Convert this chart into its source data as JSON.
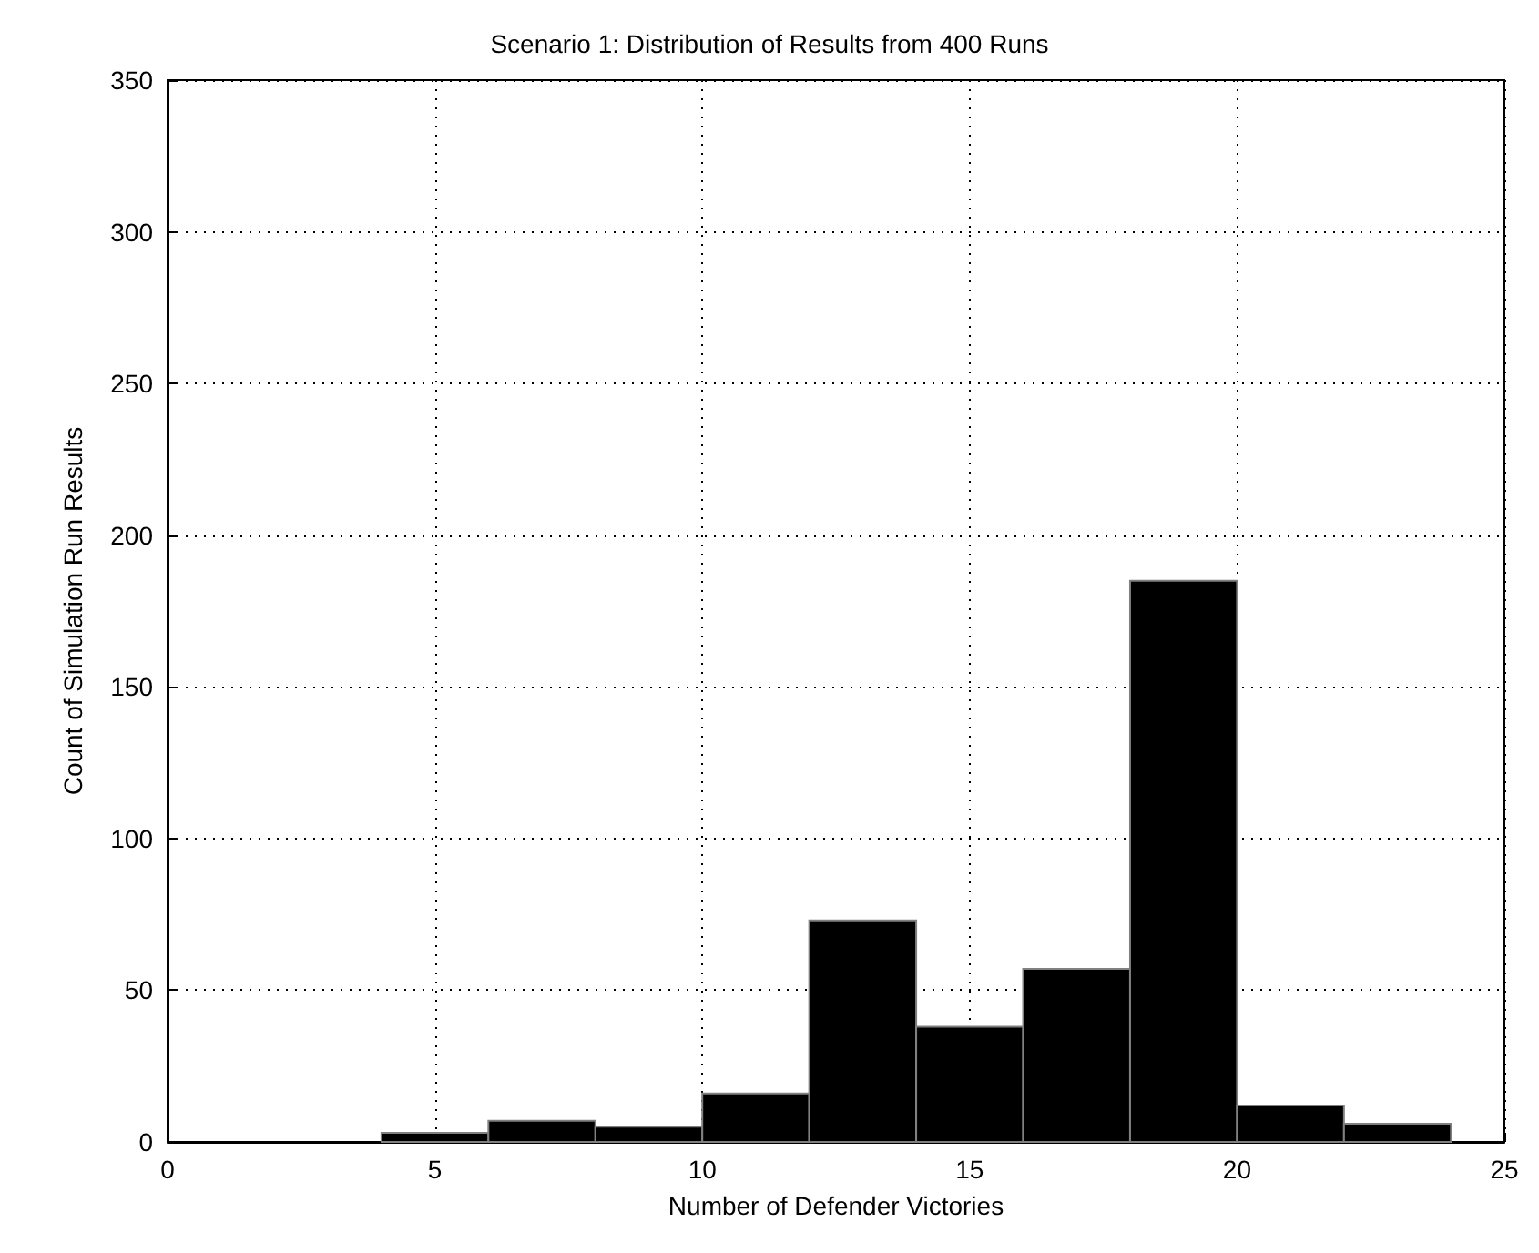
{
  "chart_data": {
    "type": "histogram",
    "title": "Scenario 1: Distribution of Results from 400 Runs",
    "xlabel": "Number of Defender Victories",
    "ylabel": "Count of Simulation Run Results",
    "bins": [
      4,
      6,
      8,
      10,
      12,
      14,
      16,
      18,
      20,
      22,
      24
    ],
    "values": [
      3,
      7,
      5,
      16,
      73,
      38,
      57,
      185,
      12,
      6
    ],
    "color": "#000000",
    "xlim": [
      0,
      25
    ],
    "xticks": [
      0,
      5,
      10,
      15,
      20,
      25
    ],
    "ylim": [
      0,
      350
    ],
    "yticks": [
      0,
      50,
      100,
      150,
      200,
      250,
      300,
      350
    ],
    "grid": true
  }
}
